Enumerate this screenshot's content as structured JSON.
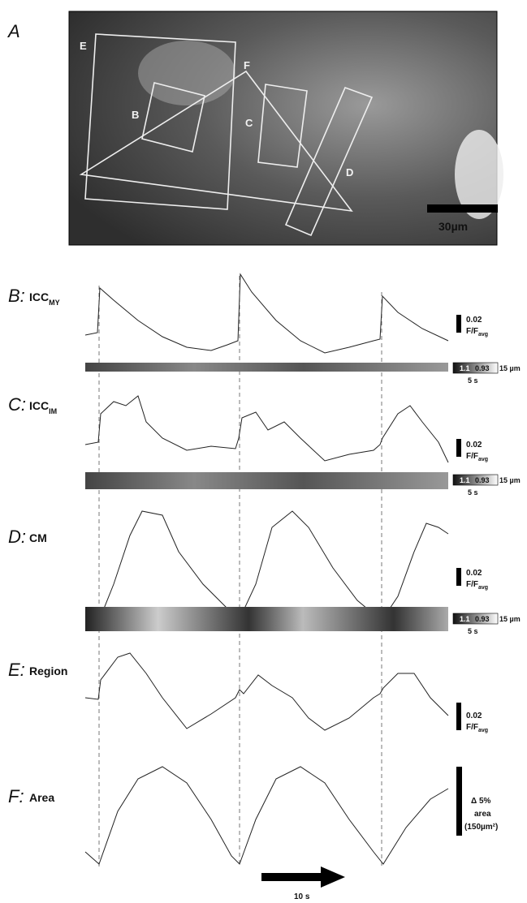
{
  "panel_a": {
    "label": "A",
    "regions": [
      "E",
      "F",
      "B",
      "C",
      "D"
    ],
    "scale_bar": "30µm"
  },
  "traces": [
    {
      "label": "B:",
      "name": "ICC",
      "subscript": "MY",
      "scale": "0.02",
      "unit": "F/F",
      "unit_subscript": "avg",
      "colorbar": {
        "max": "1.1",
        "min": "0.93",
        "height": "15 µm",
        "time": "5 s"
      }
    },
    {
      "label": "C:",
      "name": "ICC",
      "subscript": "IM",
      "scale": "0.02",
      "unit": "F/F",
      "unit_subscript": "avg",
      "colorbar": {
        "max": "1.1",
        "min": "0.93",
        "height": "15 µm",
        "time": "5 s"
      }
    },
    {
      "label": "D:",
      "name": "CM",
      "scale": "0.02",
      "unit": "F/F",
      "unit_subscript": "avg",
      "colorbar": {
        "max": "1.1",
        "min": "0.93",
        "height": "15 µm",
        "time": "5 s"
      }
    },
    {
      "label": "E:",
      "name": "Region",
      "scale": "0.02",
      "unit": "F/F",
      "unit_subscript": "avg"
    },
    {
      "label": "F:",
      "name": "Area",
      "scale": "Δ 5%",
      "unit": "area",
      "unit_note": "(150µm²)"
    }
  ],
  "time_bar": "10 s"
}
